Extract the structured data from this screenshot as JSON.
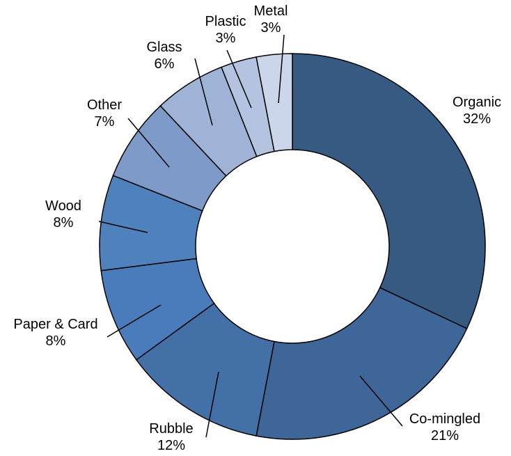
{
  "chart_data": {
    "type": "pie",
    "donut": true,
    "title": "",
    "start_angle_deg": 0,
    "direction": "clockwise",
    "slices": [
      {
        "label": "Organic",
        "value": 32,
        "value_text": "32%",
        "color": "#375A83"
      },
      {
        "label": "Co-mingled",
        "value": 21,
        "value_text": "21%",
        "color": "#3E6698"
      },
      {
        "label": "Rubble",
        "value": 12,
        "value_text": "12%",
        "color": "#4470A8"
      },
      {
        "label": "Paper & Card",
        "value": 8,
        "value_text": "8%",
        "color": "#4A7CBB"
      },
      {
        "label": "Wood",
        "value": 8,
        "value_text": "8%",
        "color": "#4F81BD"
      },
      {
        "label": "Other",
        "value": 7,
        "value_text": "7%",
        "color": "#7D9AC8"
      },
      {
        "label": "Glass",
        "value": 6,
        "value_text": "6%",
        "color": "#9EB3D6"
      },
      {
        "label": "Plastic",
        "value": 3,
        "value_text": "3%",
        "color": "#B3C3E0"
      },
      {
        "label": "Metal",
        "value": 3,
        "value_text": "3%",
        "color": "#CCD6EA"
      }
    ]
  }
}
